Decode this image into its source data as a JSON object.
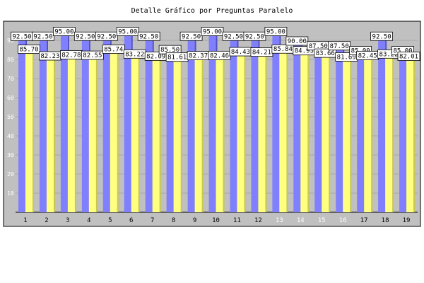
{
  "chart_data": {
    "type": "bar",
    "title": "Detalle Gráfico por Preguntas Paralelo",
    "xlabel": "",
    "ylabel": "",
    "ylim": [
      0,
      100
    ],
    "yticks": [
      10,
      20,
      30,
      40,
      50,
      60,
      70,
      80,
      90
    ],
    "grid": true,
    "legend": "none",
    "categories": [
      "1",
      "2",
      "3",
      "4",
      "5",
      "6",
      "7",
      "8",
      "9",
      "10",
      "11",
      "12",
      "13",
      "14",
      "15",
      "16",
      "17",
      "18",
      "19"
    ],
    "series": [
      {
        "color": "#8080ff",
        "values": [
          92.5,
          92.5,
          95.0,
          92.5,
          92.5,
          95.0,
          92.5,
          85.5,
          92.5,
          95.0,
          92.5,
          92.5,
          95.0,
          90.0,
          87.5,
          87.5,
          85.0,
          92.5,
          85.0
        ],
        "labels": [
          "92.50",
          "92.50",
          "95.00",
          "92.50",
          "92.50",
          "95.00",
          "92.50",
          "85.50",
          "92.50",
          "95.00",
          "92.50",
          "92.50",
          "95.00",
          "90.00",
          "87.50",
          "87.50",
          "85.00",
          "92.50",
          "85.00"
        ]
      },
      {
        "color": "#ffff80",
        "values": [
          85.7,
          82.23,
          82.78,
          82.55,
          85.74,
          83.22,
          82.09,
          81.61,
          82.37,
          82.46,
          84.43,
          84.21,
          85.84,
          84.93,
          83.66,
          81.69,
          82.45,
          83.22,
          82.01
        ],
        "labels": [
          "85.70",
          "82.23",
          "82.78",
          "82.55",
          "85.74",
          "83.22",
          "82.09",
          "81.61",
          "82.37",
          "82.46",
          "84.43",
          "84.21",
          "85.84",
          "84.93",
          "83.66",
          "81.69",
          "82.45",
          "83.22",
          "82.01"
        ]
      }
    ]
  }
}
